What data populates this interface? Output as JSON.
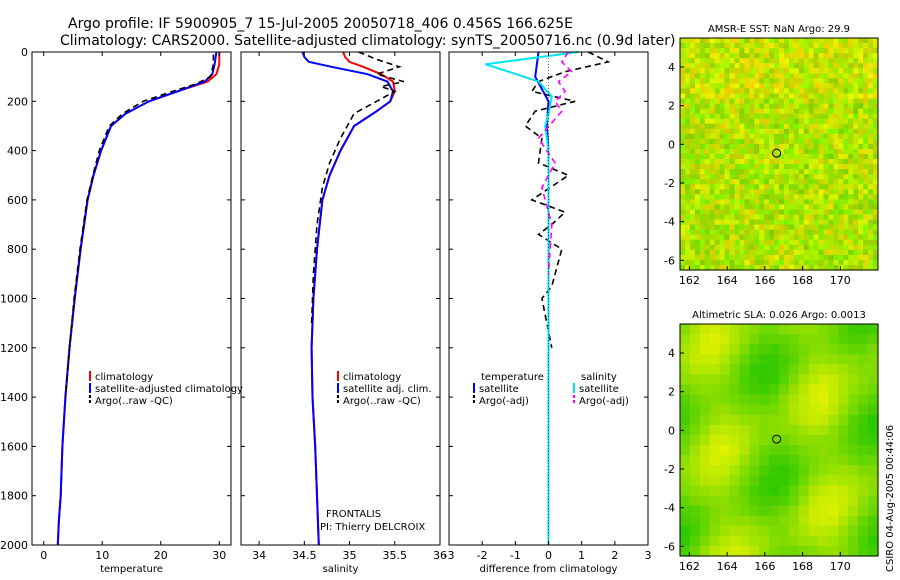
{
  "header": {
    "title_line1": "Argo profile: IF 5900905_7 15-Jul-2005 20050718_406 0.456S 166.625E",
    "title_line2": "Climatology: CARS2000. Satellite-adjusted climatology: synTS_20050716.nc (0.9d later)"
  },
  "footer": {
    "credit": "CSIRO 04-Aug-2005 00:44:06"
  },
  "colors": {
    "climatology": "#ff0000",
    "satellite": "#0000ff",
    "argo": "#000000",
    "salinity_satellite": "#00e5ee",
    "salinity_argo": "#ff00ff"
  },
  "chart_data": [
    {
      "type": "line",
      "xlabel": "temperature",
      "ylim": [
        2000,
        0
      ],
      "xlim": [
        -2,
        32
      ],
      "xticks": [
        "0",
        "10",
        "20",
        "30"
      ],
      "yticks": [
        "0",
        "200",
        "400",
        "600",
        "800",
        "1000",
        "1200",
        "1400",
        "1600",
        "1800",
        "2000"
      ],
      "legend": [
        "climatology",
        "satellite-adjusted climatology",
        "Argo(..raw -QC)"
      ],
      "series": [
        {
          "name": "climatology",
          "color": "#ff0000",
          "x": [
            30,
            30,
            29.5,
            28,
            24,
            18,
            14,
            11.5,
            9.8,
            8.5,
            7.5,
            6.3,
            5.3,
            4.4,
            3.7,
            3.2,
            2.9,
            2.6,
            2.4
          ],
          "y": [
            0,
            50,
            90,
            120,
            150,
            200,
            250,
            300,
            400,
            500,
            600,
            800,
            1000,
            1200,
            1400,
            1600,
            1800,
            1900,
            2000
          ]
        },
        {
          "name": "satellite-adjusted climatology",
          "color": "#0000ff",
          "x": [
            29.5,
            29.2,
            28.8,
            27.5,
            24,
            18,
            14,
            11.5,
            9.8,
            8.5,
            7.5,
            6.3,
            5.3,
            4.4,
            3.7,
            3.2,
            2.9,
            2.6,
            2.4
          ],
          "y": [
            0,
            50,
            90,
            120,
            150,
            200,
            250,
            300,
            400,
            500,
            600,
            800,
            1000,
            1200,
            1400,
            1600,
            1800,
            1900,
            2000
          ]
        },
        {
          "name": "Argo(..raw -QC)",
          "color": "#000000",
          "dashed": true,
          "x": [
            29,
            29,
            28.5,
            26,
            22,
            17,
            13.5,
            11.2,
            9.5,
            8.4,
            7.4,
            6.2,
            5.2,
            4.4,
            3.7
          ],
          "y": [
            10,
            50,
            100,
            130,
            160,
            200,
            250,
            300,
            400,
            500,
            600,
            800,
            1000,
            1200,
            1400
          ]
        }
      ]
    },
    {
      "type": "line",
      "xlabel": "salinity",
      "ylim": [
        2000,
        0
      ],
      "xlim": [
        33.8,
        36
      ],
      "xticks": [
        "34",
        "34.5",
        "35",
        "35.5",
        "36"
      ],
      "legend": [
        "climatology",
        "satellite adj. clim.",
        "Argo(..raw -QC)"
      ],
      "annotations": [
        "FRONTALIS",
        "PI: Thierry DELCROIX"
      ],
      "series": [
        {
          "name": "climatology",
          "color": "#ff0000",
          "x": [
            34.93,
            34.95,
            35.0,
            35.15,
            35.35,
            35.48,
            35.5,
            35.45,
            35.3,
            35.05,
            34.9,
            34.78,
            34.7,
            34.64,
            34.6,
            34.58,
            34.59,
            34.62,
            34.64,
            34.66
          ],
          "y": [
            0,
            20,
            40,
            60,
            90,
            120,
            160,
            200,
            240,
            300,
            400,
            500,
            600,
            800,
            1000,
            1200,
            1400,
            1600,
            1800,
            2000
          ]
        },
        {
          "name": "satellite adj. clim.",
          "color": "#0000ff",
          "x": [
            34.48,
            34.5,
            34.55,
            34.8,
            35.2,
            35.42,
            35.48,
            35.45,
            35.3,
            35.05,
            34.9,
            34.78,
            34.7,
            34.64,
            34.6,
            34.58,
            34.59,
            34.62,
            34.64,
            34.66
          ],
          "y": [
            0,
            20,
            40,
            60,
            90,
            120,
            160,
            200,
            240,
            300,
            400,
            500,
            600,
            800,
            1000,
            1200,
            1400,
            1600,
            1800,
            2000
          ]
        },
        {
          "name": "Argo(..raw -QC)",
          "color": "#000000",
          "dashed": true,
          "x": [
            35.1,
            35.3,
            35.55,
            35.3,
            35.6,
            35.35,
            35.5,
            35.3,
            35.05,
            34.9,
            34.78,
            34.7,
            34.64,
            34.6,
            34.58
          ],
          "y": [
            0,
            30,
            60,
            90,
            120,
            140,
            160,
            200,
            250,
            350,
            450,
            550,
            700,
            900,
            1100
          ]
        }
      ]
    },
    {
      "type": "line",
      "xlabel": "difference from climatology",
      "ylim": [
        2000,
        0
      ],
      "xlim": [
        -3,
        3
      ],
      "xticks": [
        "-3",
        "-2",
        "-1",
        "0",
        "1",
        "2",
        "3"
      ],
      "legend_temperature": [
        "temperature",
        "satellite",
        "Argo(-adj)"
      ],
      "legend_salinity": [
        "salinity",
        "satellite",
        "Argo(-adj)"
      ],
      "series": [
        {
          "name": "temperature satellite",
          "color": "#0000ff",
          "x": [
            -0.3,
            -0.35,
            -0.4,
            -0.2,
            0,
            -0.05,
            0,
            0,
            0,
            0,
            0
          ],
          "y": [
            0,
            50,
            100,
            150,
            200,
            300,
            400,
            600,
            1000,
            1500,
            2000
          ]
        },
        {
          "name": "temperature Argo(-adj)",
          "color": "#000000",
          "dashed": true,
          "x": [
            1.2,
            1.8,
            0.5,
            -0.3,
            -0.5,
            0.8,
            -0.4,
            -0.7,
            -0.2,
            -0.3,
            0.6,
            -0.5,
            0.5,
            0.1,
            -0.3,
            0.4,
            0.1,
            -0.2,
            0.1
          ],
          "y": [
            0,
            40,
            80,
            120,
            160,
            200,
            240,
            300,
            350,
            450,
            500,
            600,
            650,
            700,
            740,
            800,
            950,
            1000,
            1200
          ]
        },
        {
          "name": "salinity satellite",
          "color": "#00e5ee",
          "x": [
            0.9,
            -1.9,
            -1.2,
            -0.3,
            0.1,
            0,
            -0.1,
            0,
            0,
            0,
            0,
            0,
            0
          ],
          "y": [
            0,
            50,
            80,
            120,
            180,
            250,
            300,
            400,
            600,
            1000,
            1400,
            1800,
            2000
          ]
        },
        {
          "name": "salinity Argo(-adj)",
          "color": "#ff00ff",
          "dashed": true,
          "x": [
            0.6,
            0.4,
            0.7,
            0.3,
            0.5,
            0.2,
            0.4,
            -0.3,
            0.2,
            -0.2,
            0.1,
            0
          ],
          "y": [
            0,
            40,
            80,
            120,
            160,
            200,
            240,
            350,
            450,
            550,
            700,
            900
          ]
        }
      ]
    },
    {
      "type": "heatmap",
      "title": "AMSR-E SST: NaN Argo: 29.9",
      "xticks": [
        "162",
        "164",
        "166",
        "168",
        "170"
      ],
      "yticks": [
        "4",
        "2",
        "0",
        "-2",
        "-4",
        "-6"
      ],
      "xlim": [
        161.5,
        172
      ],
      "ylim": [
        -6.5,
        5.5
      ],
      "marker": {
        "lon": 166.625,
        "lat": -0.456
      }
    },
    {
      "type": "heatmap",
      "title": "Altimetric SLA: 0.026 Argo: 0.0013",
      "xticks": [
        "162",
        "164",
        "166",
        "168",
        "170"
      ],
      "yticks": [
        "4",
        "2",
        "0",
        "-2",
        "-4",
        "-6"
      ],
      "xlim": [
        161.5,
        172
      ],
      "ylim": [
        -6.5,
        5.5
      ],
      "marker": {
        "lon": 166.625,
        "lat": -0.456
      }
    }
  ]
}
